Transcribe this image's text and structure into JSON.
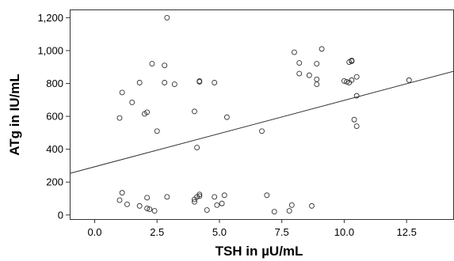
{
  "chart_data": {
    "type": "scatter",
    "title": "",
    "xlabel": "TSH in µU/mL",
    "ylabel": "ATg in IU/mL",
    "xlim": [
      -1.0,
      14.4
    ],
    "ylim": [
      -25,
      1250
    ],
    "x_ticks": [
      {
        "value": 0.0,
        "label": "0.0"
      },
      {
        "value": 2.5,
        "label": "2.5"
      },
      {
        "value": 5.0,
        "label": "5.0"
      },
      {
        "value": 7.5,
        "label": "7.5"
      },
      {
        "value": 10.0,
        "label": "10.0"
      },
      {
        "value": 12.5,
        "label": "12.5"
      }
    ],
    "y_ticks": [
      {
        "value": 0,
        "label": "0"
      },
      {
        "value": 200,
        "label": "200"
      },
      {
        "value": 400,
        "label": "400"
      },
      {
        "value": 600,
        "label": "600"
      },
      {
        "value": 800,
        "label": "800"
      },
      {
        "value": 1000,
        "label": "1,000"
      },
      {
        "value": 1200,
        "label": "1,200"
      }
    ],
    "grid": false,
    "marker": "open-circle",
    "trendline": {
      "x_start": -1.0,
      "y_start": 253,
      "x_end": 14.4,
      "y_end": 875
    },
    "points": [
      {
        "x": 2.9,
        "y": 1200
      },
      {
        "x": 1.0,
        "y": 590
      },
      {
        "x": 1.1,
        "y": 745
      },
      {
        "x": 1.5,
        "y": 685
      },
      {
        "x": 1.8,
        "y": 805
      },
      {
        "x": 2.0,
        "y": 615
      },
      {
        "x": 2.1,
        "y": 625
      },
      {
        "x": 2.3,
        "y": 920
      },
      {
        "x": 2.5,
        "y": 510
      },
      {
        "x": 2.8,
        "y": 805
      },
      {
        "x": 2.8,
        "y": 910
      },
      {
        "x": 3.2,
        "y": 795
      },
      {
        "x": 4.0,
        "y": 630
      },
      {
        "x": 4.1,
        "y": 410
      },
      {
        "x": 4.2,
        "y": 815
      },
      {
        "x": 4.2,
        "y": 810
      },
      {
        "x": 4.8,
        "y": 805
      },
      {
        "x": 5.3,
        "y": 595
      },
      {
        "x": 6.7,
        "y": 510
      },
      {
        "x": 8.0,
        "y": 990
      },
      {
        "x": 8.2,
        "y": 925
      },
      {
        "x": 8.2,
        "y": 860
      },
      {
        "x": 8.6,
        "y": 850
      },
      {
        "x": 8.9,
        "y": 920
      },
      {
        "x": 8.9,
        "y": 825
      },
      {
        "x": 8.9,
        "y": 795
      },
      {
        "x": 9.1,
        "y": 1010
      },
      {
        "x": 10.0,
        "y": 815
      },
      {
        "x": 10.1,
        "y": 810
      },
      {
        "x": 10.2,
        "y": 930
      },
      {
        "x": 10.2,
        "y": 805
      },
      {
        "x": 10.3,
        "y": 940
      },
      {
        "x": 10.3,
        "y": 935
      },
      {
        "x": 10.3,
        "y": 820
      },
      {
        "x": 10.4,
        "y": 580
      },
      {
        "x": 10.5,
        "y": 840
      },
      {
        "x": 10.5,
        "y": 725
      },
      {
        "x": 10.5,
        "y": 540
      },
      {
        "x": 12.6,
        "y": 820
      },
      {
        "x": 1.0,
        "y": 90
      },
      {
        "x": 1.1,
        "y": 135
      },
      {
        "x": 1.3,
        "y": 65
      },
      {
        "x": 1.8,
        "y": 55
      },
      {
        "x": 2.1,
        "y": 105
      },
      {
        "x": 2.1,
        "y": 40
      },
      {
        "x": 2.2,
        "y": 35
      },
      {
        "x": 2.4,
        "y": 25
      },
      {
        "x": 2.9,
        "y": 110
      },
      {
        "x": 4.0,
        "y": 95
      },
      {
        "x": 4.0,
        "y": 80
      },
      {
        "x": 4.1,
        "y": 110
      },
      {
        "x": 4.2,
        "y": 125
      },
      {
        "x": 4.2,
        "y": 115
      },
      {
        "x": 4.5,
        "y": 30
      },
      {
        "x": 4.8,
        "y": 110
      },
      {
        "x": 4.9,
        "y": 60
      },
      {
        "x": 5.1,
        "y": 70
      },
      {
        "x": 5.2,
        "y": 120
      },
      {
        "x": 6.9,
        "y": 120
      },
      {
        "x": 7.2,
        "y": 20
      },
      {
        "x": 7.8,
        "y": 25
      },
      {
        "x": 7.9,
        "y": 60
      },
      {
        "x": 8.7,
        "y": 55
      }
    ]
  }
}
